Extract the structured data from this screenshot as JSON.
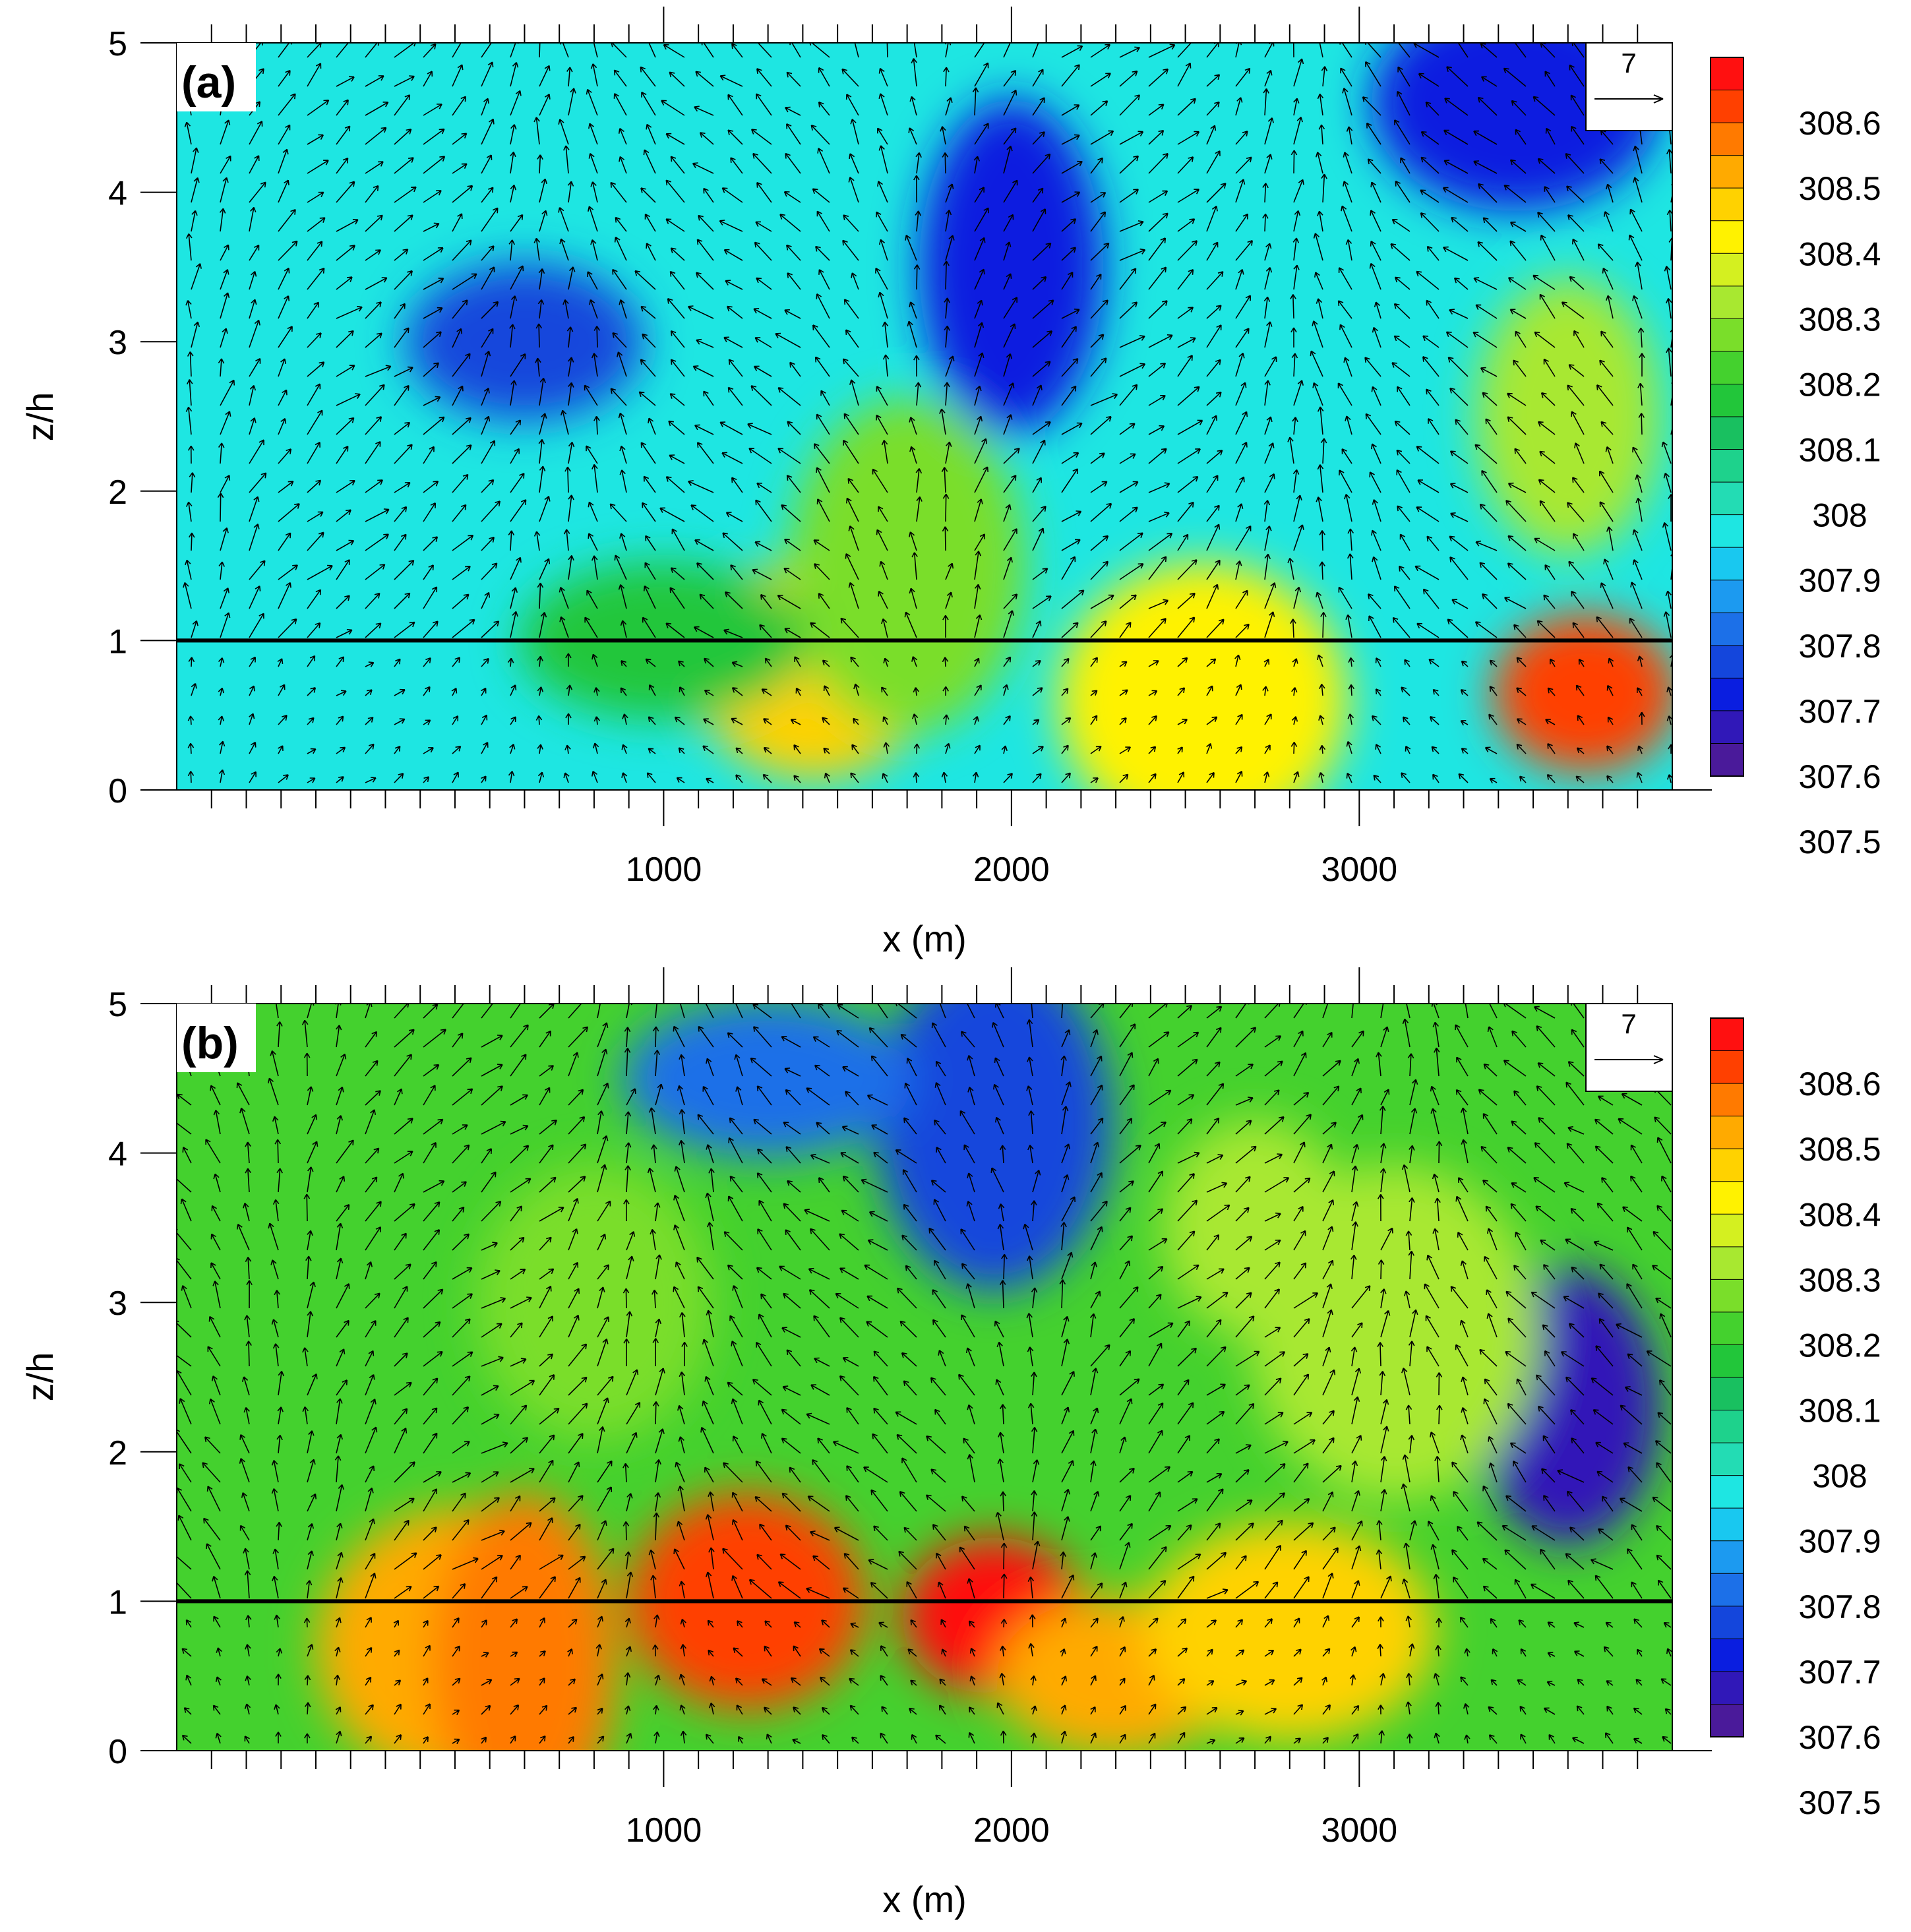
{
  "figure": {
    "domain": "chart"
  },
  "chart_data": [
    {
      "panel_label": "(a)",
      "type": "contour-with-vectors",
      "xlabel": "x (m)",
      "ylabel": "z/h",
      "xlim": [
        -400,
        3900
      ],
      "ylim": [
        0,
        5
      ],
      "x_ticks": [
        1000,
        2000,
        3000
      ],
      "y_ticks": [
        0,
        1,
        2,
        3,
        4,
        5
      ],
      "reference_line_z": 1,
      "reference_vector": {
        "label": "7",
        "magnitude": 7
      },
      "colorbar": {
        "min": 307.45,
        "max": 308.65,
        "labels": [
          "308.6",
          "308.5",
          "308.4",
          "308.3",
          "308.2",
          "308.1",
          "308",
          "307.9",
          "307.8",
          "307.7",
          "307.6",
          "307.5"
        ],
        "colors": [
          "#ff1010",
          "#ff4000",
          "#ff7a00",
          "#ffaa00",
          "#ffd200",
          "#fff200",
          "#d4f020",
          "#a8e830",
          "#7ade2a",
          "#44d12e",
          "#22c63a",
          "#19c060",
          "#1ed28c",
          "#23dcb4",
          "#1ee6e2",
          "#19c8f0",
          "#1c9af0",
          "#1c70e8",
          "#1446dc",
          "#0a1ee0",
          "#3018b8",
          "#4a1a9a"
        ]
      },
      "field_features": [
        {
          "x": 3650,
          "z": 0.65,
          "value": 308.55
        },
        {
          "x": 1430,
          "z": 0.8,
          "value": 308.4
        },
        {
          "x": 2550,
          "z": 0.6,
          "value": 308.35
        },
        {
          "x": 2000,
          "z": 3.5,
          "value": 307.6
        },
        {
          "x": 600,
          "z": 3.0,
          "value": 307.65
        },
        {
          "x": 3450,
          "z": 4.6,
          "value": 307.6
        },
        {
          "x": 3600,
          "z": 2.5,
          "value": 308.25
        },
        {
          "x": 1700,
          "z": 1.5,
          "value": 308.2
        },
        {
          "x": 1000,
          "z": 1.0,
          "value": 308.05
        }
      ]
    },
    {
      "panel_label": "(b)",
      "type": "contour-with-vectors",
      "xlabel": "x (m)",
      "ylabel": "z/h",
      "xlim": [
        -400,
        3900
      ],
      "ylim": [
        0,
        5
      ],
      "x_ticks": [
        1000,
        2000,
        3000
      ],
      "y_ticks": [
        0,
        1,
        2,
        3,
        4,
        5
      ],
      "reference_line_z": 1,
      "reference_vector": {
        "label": "7",
        "magnitude": 7
      },
      "colorbar": {
        "min": 307.45,
        "max": 308.65,
        "labels": [
          "308.6",
          "308.5",
          "308.4",
          "308.3",
          "308.2",
          "308.1",
          "308",
          "307.9",
          "307.8",
          "307.7",
          "307.6",
          "307.5"
        ],
        "colors": [
          "#ff1010",
          "#ff4000",
          "#ff7a00",
          "#ffaa00",
          "#ffd200",
          "#fff200",
          "#d4f020",
          "#a8e830",
          "#7ade2a",
          "#44d12e",
          "#22c63a",
          "#19c060",
          "#1ed28c",
          "#23dcb4",
          "#1ee6e2",
          "#19c8f0",
          "#1c9af0",
          "#1c70e8",
          "#1446dc",
          "#0a1ee0",
          "#3018b8",
          "#4a1a9a"
        ]
      },
      "field_features": [
        {
          "x": 1950,
          "z": 0.9,
          "value": 308.62
        },
        {
          "x": 1240,
          "z": 1.0,
          "value": 308.55
        },
        {
          "x": 420,
          "z": 0.7,
          "value": 308.45
        },
        {
          "x": 600,
          "z": 0.6,
          "value": 308.5
        },
        {
          "x": 2300,
          "z": 0.5,
          "value": 308.45
        },
        {
          "x": 2800,
          "z": 0.8,
          "value": 308.4
        },
        {
          "x": 3600,
          "z": 2.3,
          "value": 307.55
        },
        {
          "x": 1950,
          "z": 4.2,
          "value": 307.65
        },
        {
          "x": 1300,
          "z": 4.5,
          "value": 307.7
        },
        {
          "x": 2700,
          "z": 3.5,
          "value": 308.25
        },
        {
          "x": 800,
          "z": 3.0,
          "value": 308.2
        },
        {
          "x": 3100,
          "z": 2.8,
          "value": 308.25
        }
      ]
    }
  ]
}
